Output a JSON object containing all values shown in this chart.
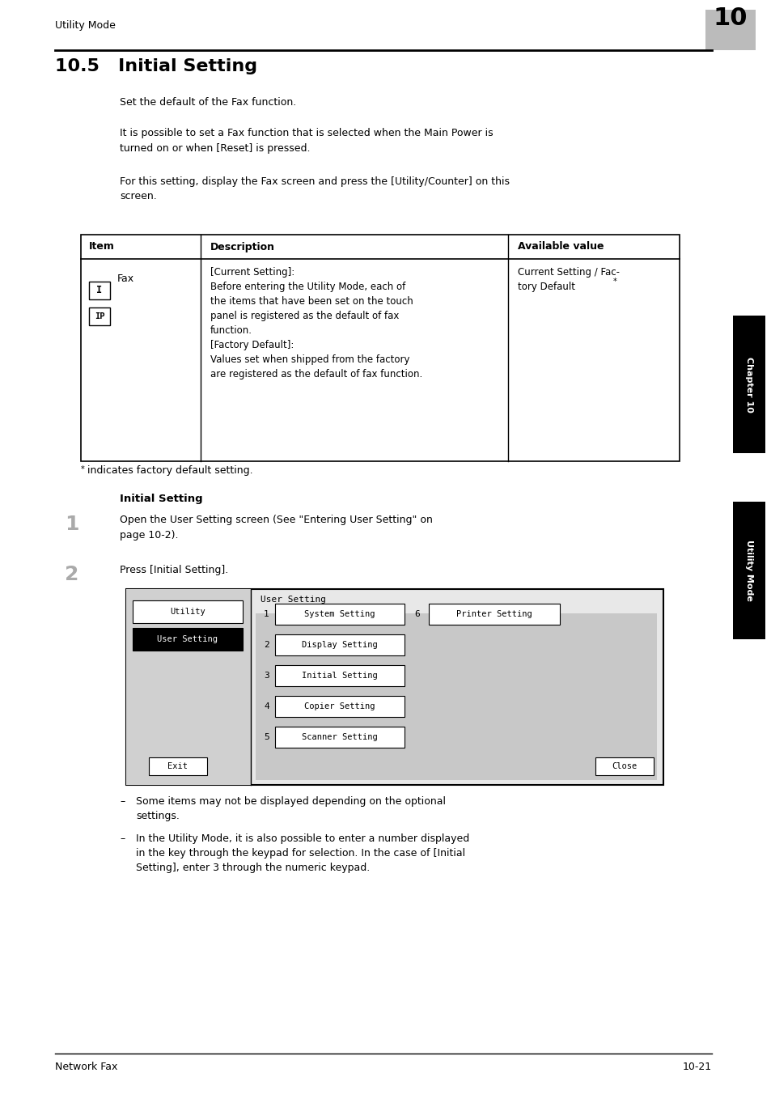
{
  "page_width": 9.54,
  "page_height": 13.52,
  "bg_color": "#ffffff",
  "header_text": "Utility Mode",
  "chapter_num": "10",
  "title": "10.5   Initial Setting",
  "para1": "Set the default of the Fax function.",
  "para2": "It is possible to set a Fax function that is selected when the Main Power is\nturned on or when [Reset] is pressed.",
  "para3": "For this setting, display the Fax screen and press the [Utility/Counter] on this\nscreen.",
  "table_header": [
    "Item",
    "Description",
    "Available value"
  ],
  "table_col1_text": "Fax",
  "table_col2_text": "[Current Setting]:\nBefore entering the Utility Mode, each of\nthe items that have been set on the touch\npanel is registered as the default of fax\nfunction.\n[Factory Default]:\nValues set when shipped from the factory\nare registered as the default of fax function.",
  "table_col3_text": "Current Setting / Fac-\ntory Default",
  "footnote": "* indicates factory default setting.",
  "section_title": "Initial Setting",
  "step1_num": "1",
  "step1_text": "Open the User Setting screen (See \"Entering User Setting\" on\npage 10-2).",
  "step2_num": "2",
  "step2_text": "Press [Initial Setting].",
  "bullet1": "Some items may not be displayed depending on the optional\nsettings.",
  "bullet2": "In the Utility Mode, it is also possible to enter a number displayed\nin the key through the keypad for selection. In the case of [Initial\nSetting], enter 3 through the numeric keypad.",
  "footer_left": "Network Fax",
  "footer_right": "10-21"
}
